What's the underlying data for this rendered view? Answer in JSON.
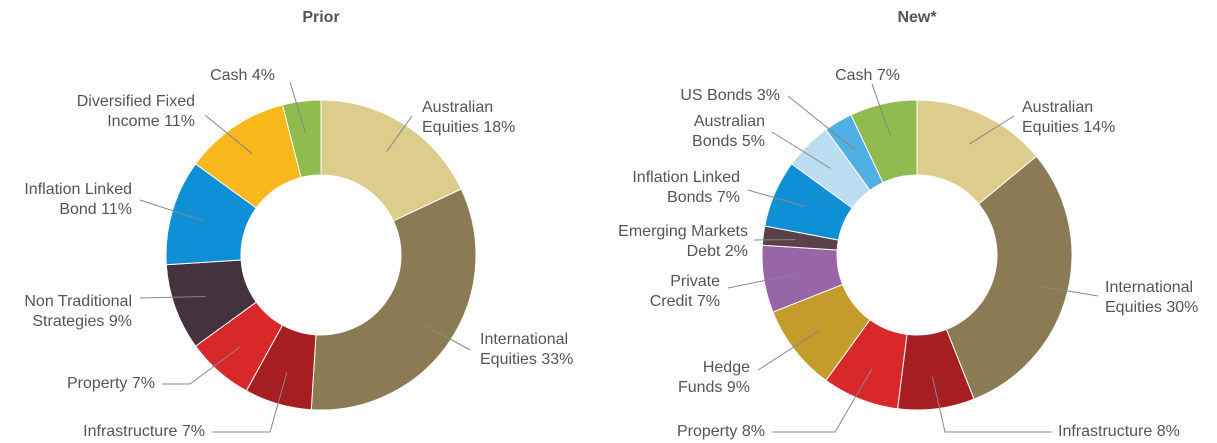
{
  "chart_data": [
    {
      "type": "pie",
      "title": "Prior",
      "categories": [
        "Australian Equities",
        "International Equities",
        "Infrastructure",
        "Property",
        "Non Traditional Strategies",
        "Inflation Linked Bond",
        "Diversified Fixed Income",
        "Cash"
      ],
      "values": [
        18,
        33,
        7,
        7,
        9,
        11,
        11,
        4
      ],
      "value_labels": [
        "18%",
        "33%",
        "7%",
        "7%",
        "9%",
        "11%",
        "11%",
        "4%"
      ],
      "colors": [
        "#dccd8c",
        "#8a7b55",
        "#a61e22",
        "#d9282a",
        "#45323f",
        "#0e8fd6",
        "#f9b81b",
        "#8fbb4f"
      ]
    },
    {
      "type": "pie",
      "title": "New*",
      "categories": [
        "Australian Equities",
        "International Equities",
        "Infrastructure",
        "Property",
        "Hedge Funds",
        "Private Credit",
        "Emerging Markets Debt",
        "Inflation Linked Bonds",
        "Australian Bonds",
        "US Bonds",
        "Cash"
      ],
      "values": [
        14,
        30,
        8,
        8,
        9,
        7,
        2,
        7,
        5,
        3,
        7
      ],
      "value_labels": [
        "14%",
        "30%",
        "8%",
        "8%",
        "9%",
        "7%",
        "2%",
        "7%",
        "5%",
        "3%",
        "7%"
      ],
      "colors": [
        "#dccd8c",
        "#8a7b55",
        "#a61e22",
        "#d9282a",
        "#c59b2c",
        "#9866a6",
        "#5a4049",
        "#0e8fd6",
        "#bcdcf0",
        "#4fb0e4",
        "#8fbb4f"
      ]
    }
  ]
}
